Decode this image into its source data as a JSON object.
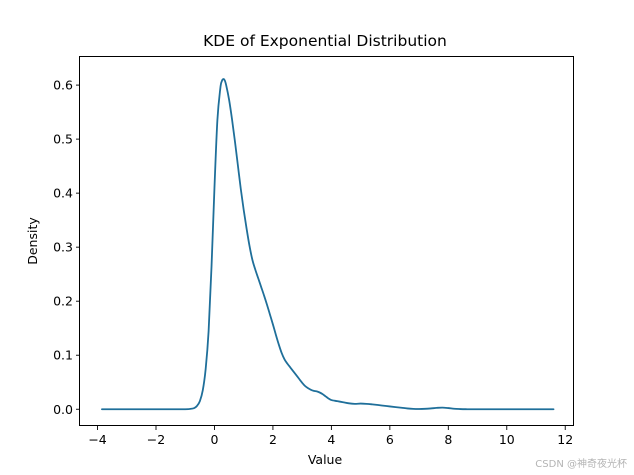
{
  "chart_data": {
    "type": "line",
    "title": "KDE of Exponential Distribution",
    "xlabel": "Value",
    "ylabel": "Density",
    "xlim": [
      -4.6,
      12.3
    ],
    "ylim": [
      -0.031,
      0.652
    ],
    "xticks": [
      -4,
      -2,
      0,
      2,
      4,
      6,
      8,
      10,
      12
    ],
    "xtick_labels": [
      "−4",
      "−2",
      "0",
      "2",
      "4",
      "6",
      "8",
      "10",
      "12"
    ],
    "yticks": [
      0.0,
      0.1,
      0.2,
      0.3,
      0.4,
      0.5,
      0.6
    ],
    "ytick_labels": [
      "0.0",
      "0.1",
      "0.2",
      "0.3",
      "0.4",
      "0.5",
      "0.6"
    ],
    "grid": false,
    "legend": "none",
    "line_color": "#1f6f9a",
    "series": [
      {
        "x": [
          -3.85,
          -3.0,
          -2.0,
          -1.0,
          -0.85,
          -0.7,
          -0.6,
          -0.5,
          -0.4,
          -0.3,
          -0.2,
          -0.1,
          0.0,
          0.1,
          0.2,
          0.25,
          0.3,
          0.35,
          0.4,
          0.5,
          0.6,
          0.7,
          0.8,
          0.9,
          1.0,
          1.1,
          1.2,
          1.3,
          1.4,
          1.5,
          1.6,
          1.7,
          1.8,
          1.9,
          2.0,
          2.1,
          2.2,
          2.3,
          2.4,
          2.5,
          2.6,
          2.7,
          2.8,
          2.9,
          3.0,
          3.1,
          3.2,
          3.3,
          3.4,
          3.5,
          3.6,
          3.7,
          3.8,
          3.9,
          4.0,
          4.2,
          4.4,
          4.6,
          4.8,
          5.0,
          5.2,
          5.4,
          5.6,
          5.8,
          6.0,
          6.2,
          6.4,
          6.6,
          6.8,
          7.0,
          7.2,
          7.4,
          7.6,
          7.8,
          8.0,
          8.2,
          8.4,
          8.6,
          9.0,
          10.0,
          11.0,
          11.6
        ],
        "y": [
          0.0,
          0.0,
          0.0,
          0.0,
          0.0005,
          0.002,
          0.006,
          0.015,
          0.035,
          0.075,
          0.145,
          0.265,
          0.41,
          0.535,
          0.594,
          0.607,
          0.611,
          0.609,
          0.6,
          0.573,
          0.537,
          0.496,
          0.452,
          0.408,
          0.369,
          0.334,
          0.302,
          0.276,
          0.258,
          0.242,
          0.226,
          0.21,
          0.193,
          0.175,
          0.157,
          0.138,
          0.12,
          0.104,
          0.092,
          0.084,
          0.077,
          0.07,
          0.063,
          0.056,
          0.049,
          0.043,
          0.039,
          0.036,
          0.034,
          0.033,
          0.031,
          0.028,
          0.024,
          0.02,
          0.017,
          0.015,
          0.013,
          0.011,
          0.01,
          0.0105,
          0.01,
          0.009,
          0.0078,
          0.0065,
          0.0052,
          0.004,
          0.0028,
          0.0015,
          0.0007,
          0.0005,
          0.0008,
          0.0015,
          0.0025,
          0.003,
          0.0022,
          0.001,
          0.0004,
          0.0001,
          0.0,
          0.0,
          0.0,
          0.0
        ]
      }
    ]
  },
  "watermark": "CSDN @神奇夜光杯"
}
